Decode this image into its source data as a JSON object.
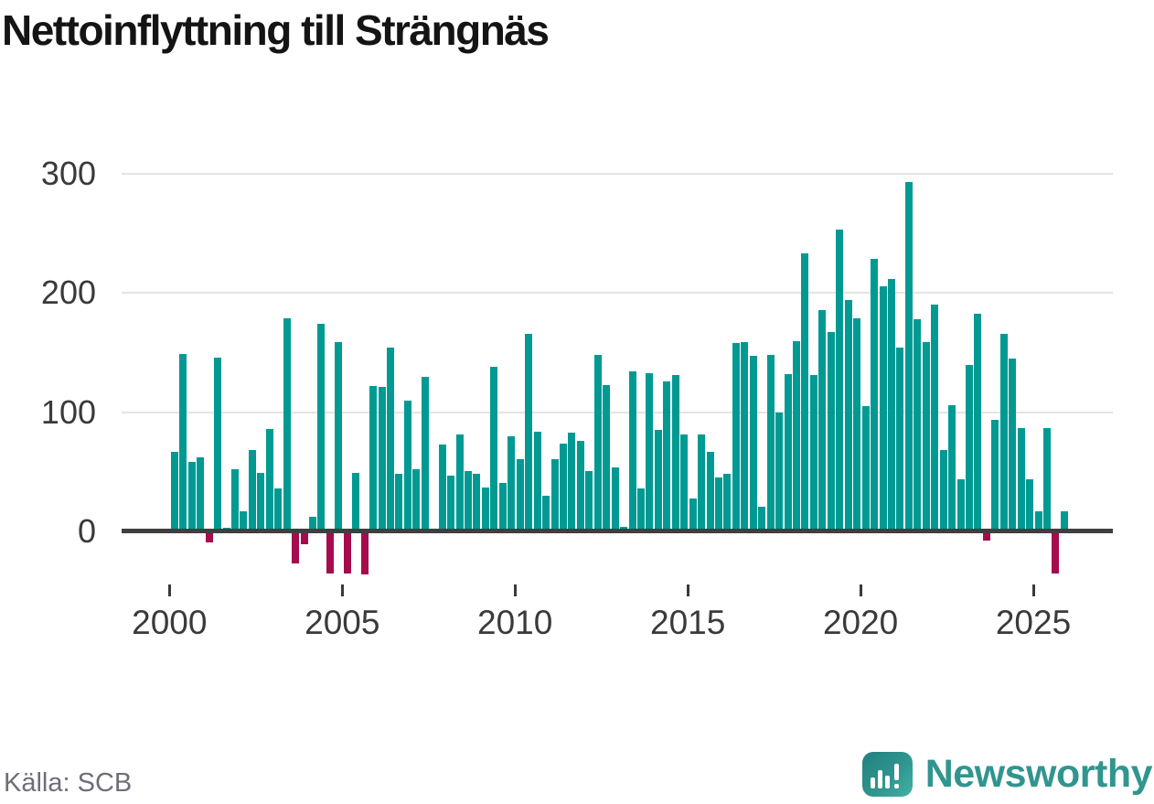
{
  "title": "Nettoinflyttning till Strängnäs",
  "source": {
    "label": "Källa: SCB"
  },
  "brand": {
    "name": "Newsworthy",
    "icon": "newsworthy-speech-bubble-chart-icon",
    "color": "#31958f"
  },
  "chart_data": {
    "type": "bar",
    "title": "Nettoinflyttning till Strängnäs",
    "xlabel": "",
    "ylabel": "",
    "grid": "horizontal",
    "legend": "none",
    "ylim": [
      -50,
      310
    ],
    "y_ticks": [
      0,
      100,
      200,
      300
    ],
    "x_year_ticks": [
      2000,
      2005,
      2010,
      2015,
      2020,
      2025
    ],
    "positive_color": "#009a93",
    "negative_color": "#a50b4d",
    "categories": [
      "2000Q1",
      "2000Q2",
      "2000Q3",
      "2000Q4",
      "2001Q1",
      "2001Q2",
      "2001Q3",
      "2001Q4",
      "2002Q1",
      "2002Q2",
      "2002Q3",
      "2002Q4",
      "2003Q1",
      "2003Q2",
      "2003Q3",
      "2003Q4",
      "2004Q1",
      "2004Q2",
      "2004Q3",
      "2004Q4",
      "2005Q1",
      "2005Q2",
      "2005Q3",
      "2005Q4",
      "2006Q1",
      "2006Q2",
      "2006Q3",
      "2006Q4",
      "2007Q1",
      "2007Q2",
      "2007Q3",
      "2007Q4",
      "2008Q1",
      "2008Q2",
      "2008Q3",
      "2008Q4",
      "2009Q1",
      "2009Q2",
      "2009Q3",
      "2009Q4",
      "2010Q1",
      "2010Q2",
      "2010Q3",
      "2010Q4",
      "2011Q1",
      "2011Q2",
      "2011Q3",
      "2011Q4",
      "2012Q1",
      "2012Q2",
      "2012Q3",
      "2012Q4",
      "2013Q1",
      "2013Q2",
      "2013Q3",
      "2013Q4",
      "2014Q1",
      "2014Q2",
      "2014Q3",
      "2014Q4",
      "2015Q1",
      "2015Q2",
      "2015Q3",
      "2015Q4",
      "2016Q1",
      "2016Q2",
      "2016Q3",
      "2016Q4",
      "2017Q1",
      "2017Q2",
      "2017Q3",
      "2017Q4",
      "2018Q1",
      "2018Q2",
      "2018Q3",
      "2018Q4",
      "2019Q1",
      "2019Q2",
      "2019Q3",
      "2019Q4",
      "2020Q1",
      "2020Q2",
      "2020Q3",
      "2020Q4",
      "2021Q1",
      "2021Q2",
      "2021Q3",
      "2021Q4",
      "2022Q1",
      "2022Q2",
      "2022Q3",
      "2022Q4",
      "2023Q1",
      "2023Q2",
      "2023Q3",
      "2023Q4",
      "2024Q1",
      "2024Q2",
      "2024Q3",
      "2024Q4",
      "2025Q1",
      "2025Q2",
      "2025Q3",
      "2025Q4"
    ],
    "values": [
      67,
      149,
      58,
      62,
      -9,
      146,
      3,
      52,
      17,
      68,
      49,
      86,
      36,
      179,
      -27,
      -11,
      12,
      174,
      -35,
      159,
      -35,
      49,
      -36,
      122,
      121,
      154,
      48,
      110,
      52,
      130,
      0,
      73,
      47,
      81,
      51,
      48,
      37,
      138,
      41,
      80,
      61,
      166,
      84,
      30,
      61,
      74,
      83,
      76,
      51,
      148,
      123,
      54,
      4,
      134,
      36,
      133,
      85,
      126,
      131,
      81,
      28,
      81,
      67,
      45,
      48,
      158,
      159,
      147,
      21,
      148,
      100,
      132,
      160,
      233,
      131,
      186,
      167,
      253,
      194,
      179,
      105,
      229,
      206,
      212,
      154,
      293,
      178,
      159,
      190,
      68,
      106,
      44,
      140,
      183,
      -8,
      94,
      166,
      145,
      87,
      44,
      17,
      87,
      -35,
      17
    ]
  }
}
